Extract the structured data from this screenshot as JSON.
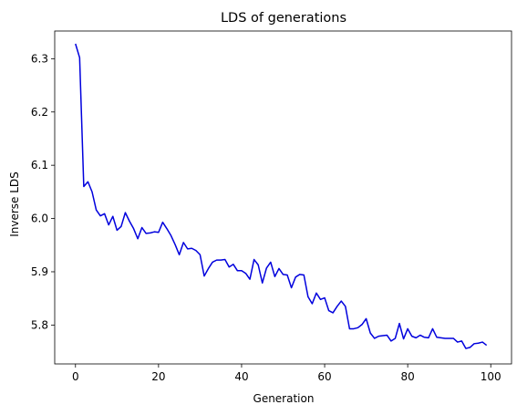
{
  "chart_data": {
    "type": "line",
    "title": "LDS of generations",
    "xlabel": "Generation",
    "ylabel": "Inverse LDS",
    "xlim": [
      -5,
      105
    ],
    "ylim": [
      5.727,
      6.352
    ],
    "xticks": [
      0,
      20,
      40,
      60,
      80,
      100
    ],
    "yticks": [
      5.8,
      5.9,
      6.0,
      6.1,
      6.2,
      6.3
    ],
    "grid": false,
    "series": [
      {
        "color": "#0000dd",
        "x": [
          0,
          1,
          2,
          3,
          4,
          5,
          6,
          7,
          8,
          9,
          10,
          11,
          12,
          13,
          14,
          15,
          16,
          17,
          18,
          19,
          20,
          21,
          22,
          23,
          24,
          25,
          26,
          27,
          28,
          29,
          30,
          31,
          32,
          33,
          34,
          35,
          36,
          37,
          38,
          39,
          40,
          41,
          42,
          43,
          44,
          45,
          46,
          47,
          48,
          49,
          50,
          51,
          52,
          53,
          54,
          55,
          56,
          57,
          58,
          59,
          60,
          61,
          62,
          63,
          64,
          65,
          66,
          67,
          68,
          69,
          70,
          71,
          72,
          73,
          74,
          75,
          76,
          77,
          78,
          79,
          80,
          81,
          82,
          83,
          84,
          85,
          86,
          87,
          88,
          89,
          90,
          91,
          92,
          93,
          94,
          95,
          96,
          97,
          98,
          99
        ],
        "values": [
          6.328,
          6.302,
          6.06,
          6.069,
          6.05,
          6.016,
          6.005,
          6.009,
          5.988,
          6.004,
          5.978,
          5.985,
          6.011,
          5.995,
          5.981,
          5.962,
          5.983,
          5.972,
          5.973,
          5.975,
          5.974,
          5.993,
          5.981,
          5.968,
          5.951,
          5.932,
          5.955,
          5.943,
          5.944,
          5.94,
          5.932,
          5.892,
          5.906,
          5.918,
          5.922,
          5.922,
          5.923,
          5.909,
          5.914,
          5.902,
          5.902,
          5.897,
          5.886,
          5.923,
          5.913,
          5.879,
          5.907,
          5.918,
          5.891,
          5.906,
          5.895,
          5.894,
          5.87,
          5.89,
          5.895,
          5.894,
          5.853,
          5.84,
          5.86,
          5.848,
          5.851,
          5.827,
          5.823,
          5.835,
          5.845,
          5.835,
          5.793,
          5.793,
          5.795,
          5.801,
          5.812,
          5.785,
          5.775,
          5.779,
          5.78,
          5.781,
          5.77,
          5.775,
          5.803,
          5.774,
          5.793,
          5.779,
          5.776,
          5.781,
          5.777,
          5.776,
          5.793,
          5.777,
          5.776,
          5.775,
          5.775,
          5.775,
          5.768,
          5.77,
          5.756,
          5.758,
          5.765,
          5.766,
          5.768,
          5.762
        ]
      }
    ]
  }
}
